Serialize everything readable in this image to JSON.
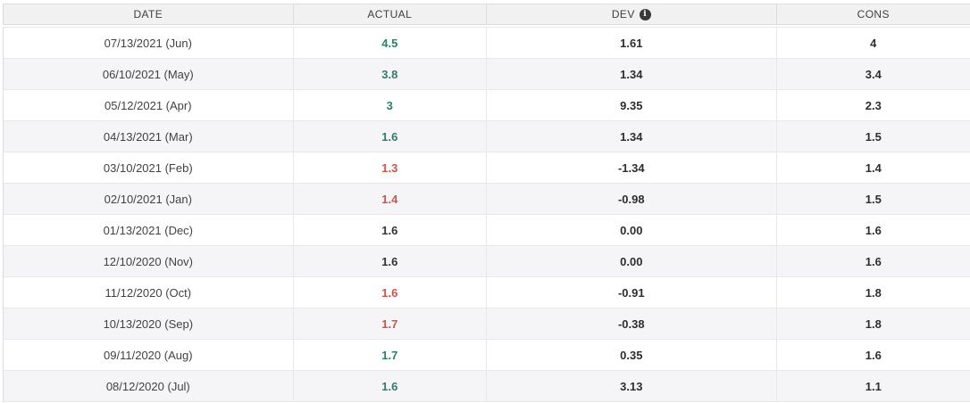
{
  "colors": {
    "green": "#2f7d6b",
    "red": "#d05349",
    "neutral": "#333333",
    "header_bg": "#f1f1f2",
    "row_alt_bg": "#f5f5f8"
  },
  "table": {
    "columns": [
      {
        "key": "date",
        "label": "DATE"
      },
      {
        "key": "actual",
        "label": "ACTUAL"
      },
      {
        "key": "dev",
        "label": "DEV",
        "has_info_icon": true
      },
      {
        "key": "cons",
        "label": "CONS"
      }
    ],
    "info_icon_glyph": "i",
    "rows": [
      {
        "date": "07/13/2021 (Jun)",
        "actual": "4.5",
        "actual_color": "green",
        "dev": "1.61",
        "cons": "4"
      },
      {
        "date": "06/10/2021 (May)",
        "actual": "3.8",
        "actual_color": "green",
        "dev": "1.34",
        "cons": "3.4"
      },
      {
        "date": "05/12/2021 (Apr)",
        "actual": "3",
        "actual_color": "green",
        "dev": "9.35",
        "cons": "2.3"
      },
      {
        "date": "04/13/2021 (Mar)",
        "actual": "1.6",
        "actual_color": "green",
        "dev": "1.34",
        "cons": "1.5"
      },
      {
        "date": "03/10/2021 (Feb)",
        "actual": "1.3",
        "actual_color": "red",
        "dev": "-1.34",
        "cons": "1.4"
      },
      {
        "date": "02/10/2021 (Jan)",
        "actual": "1.4",
        "actual_color": "red",
        "dev": "-0.98",
        "cons": "1.5"
      },
      {
        "date": "01/13/2021 (Dec)",
        "actual": "1.6",
        "actual_color": "neutral",
        "dev": "0.00",
        "cons": "1.6"
      },
      {
        "date": "12/10/2020 (Nov)",
        "actual": "1.6",
        "actual_color": "neutral",
        "dev": "0.00",
        "cons": "1.6"
      },
      {
        "date": "11/12/2020 (Oct)",
        "actual": "1.6",
        "actual_color": "red",
        "dev": "-0.91",
        "cons": "1.8"
      },
      {
        "date": "10/13/2020 (Sep)",
        "actual": "1.7",
        "actual_color": "red",
        "dev": "-0.38",
        "cons": "1.8"
      },
      {
        "date": "09/11/2020 (Aug)",
        "actual": "1.7",
        "actual_color": "green",
        "dev": "0.35",
        "cons": "1.6"
      },
      {
        "date": "08/12/2020 (Jul)",
        "actual": "1.6",
        "actual_color": "green",
        "dev": "3.13",
        "cons": "1.1"
      }
    ]
  },
  "chart_data": {
    "type": "table",
    "columns": [
      "DATE",
      "ACTUAL",
      "DEV",
      "CONS"
    ],
    "rows": [
      [
        "07/13/2021 (Jun)",
        4.5,
        1.61,
        4
      ],
      [
        "06/10/2021 (May)",
        3.8,
        1.34,
        3.4
      ],
      [
        "05/12/2021 (Apr)",
        3,
        9.35,
        2.3
      ],
      [
        "04/13/2021 (Mar)",
        1.6,
        1.34,
        1.5
      ],
      [
        "03/10/2021 (Feb)",
        1.3,
        -1.34,
        1.4
      ],
      [
        "02/10/2021 (Jan)",
        1.4,
        -0.98,
        1.5
      ],
      [
        "01/13/2021 (Dec)",
        1.6,
        0.0,
        1.6
      ],
      [
        "12/10/2020 (Nov)",
        1.6,
        0.0,
        1.6
      ],
      [
        "11/12/2020 (Oct)",
        1.6,
        -0.91,
        1.8
      ],
      [
        "10/13/2020 (Sep)",
        1.7,
        -0.38,
        1.8
      ],
      [
        "09/11/2020 (Aug)",
        1.7,
        0.35,
        1.6
      ],
      [
        "08/12/2020 (Jul)",
        1.6,
        3.13,
        1.1
      ]
    ]
  }
}
